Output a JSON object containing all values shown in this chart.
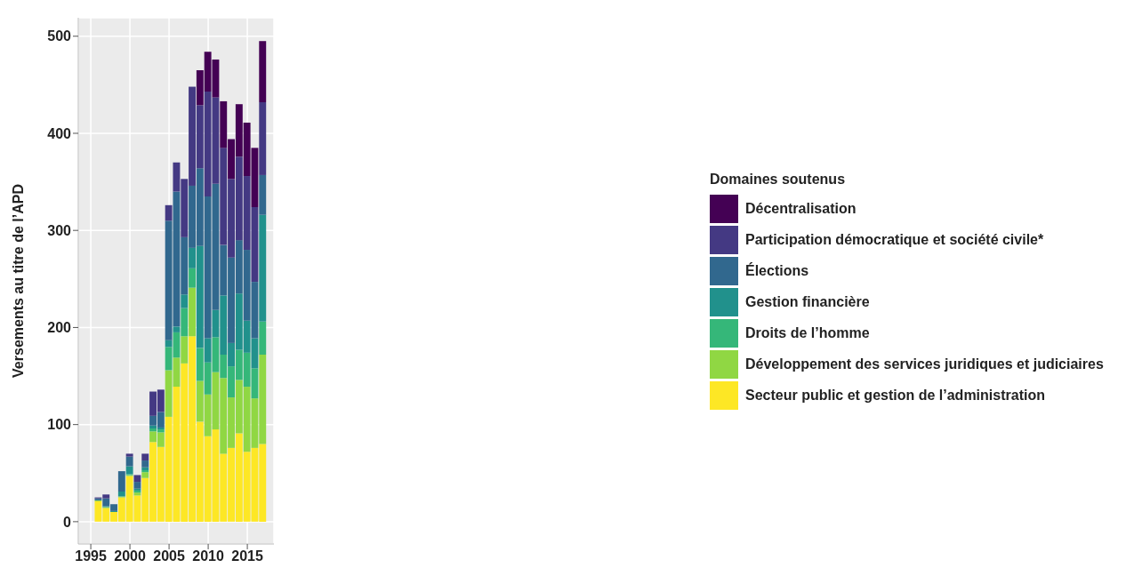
{
  "chart_data": {
    "type": "bar",
    "stacked": true,
    "ylabel": "Versements au titre de l’APD",
    "legend_title": "Domaines soutenus",
    "legend": "right",
    "grid": true,
    "x": [
      1996,
      1997,
      1998,
      1999,
      2000,
      2001,
      2002,
      2003,
      2004,
      2005,
      2006,
      2007,
      2008,
      2009,
      2010,
      2011,
      2012,
      2013,
      2014,
      2015,
      2016,
      2017
    ],
    "xlim": [
      1993.4,
      2018.4
    ],
    "xticks": [
      1995,
      2000,
      2005,
      2010,
      2015
    ],
    "ylim": [
      -23,
      519
    ],
    "yticks": [
      0,
      100,
      200,
      300,
      400,
      500
    ],
    "series": [
      {
        "name": "Secteur public et gestion de l’administration",
        "color": "#fde725",
        "values": [
          21,
          14,
          10,
          25,
          47,
          27,
          45,
          82,
          77,
          108,
          139,
          163,
          191,
          103,
          88,
          95,
          70,
          76,
          91,
          72,
          76,
          80
        ]
      },
      {
        "name": "Développement des services juridiques et judiciaires",
        "color": "#90d743",
        "values": [
          1,
          1,
          0,
          1,
          1,
          3,
          6,
          11,
          15,
          48,
          30,
          28,
          50,
          42,
          43,
          59,
          78,
          52,
          55,
          67,
          51,
          92
        ]
      },
      {
        "name": "Droits de l’homme",
        "color": "#35b779",
        "values": [
          0,
          0,
          0,
          0,
          1,
          2,
          2,
          3,
          3,
          24,
          26,
          29,
          20,
          34,
          33,
          36,
          24,
          32,
          31,
          35,
          31,
          34
        ]
      },
      {
        "name": "Gestion financière",
        "color": "#21918c",
        "values": [
          0,
          1,
          1,
          5,
          8,
          2,
          3,
          3,
          2,
          7,
          6,
          14,
          21,
          105,
          25,
          28,
          61,
          24,
          58,
          33,
          31,
          110
        ]
      },
      {
        "name": "Élections",
        "color": "#31688e",
        "values": [
          2,
          8,
          7,
          21,
          10,
          7,
          7,
          10,
          16,
          123,
          139,
          59,
          64,
          80,
          146,
          130,
          52,
          88,
          55,
          73,
          58,
          41
        ]
      },
      {
        "name": "Participation démocratique et société civile*",
        "color": "#443983",
        "values": [
          1,
          4,
          0,
          0,
          3,
          7,
          7,
          25,
          23,
          16,
          30,
          60,
          102,
          65,
          108,
          89,
          100,
          81,
          86,
          76,
          77,
          75
        ]
      },
      {
        "name": "Décentralisation",
        "color": "#440154",
        "values": [
          0,
          0,
          0,
          0,
          0,
          0,
          0,
          0,
          0,
          0,
          0,
          0,
          0,
          36,
          41,
          39,
          48,
          41,
          54,
          55,
          61,
          63
        ]
      }
    ]
  }
}
